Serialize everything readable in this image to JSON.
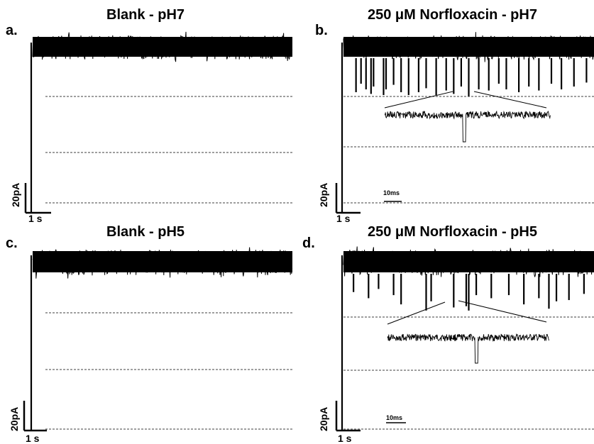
{
  "chart_data": [
    {
      "type": "line",
      "panel_label": "a.",
      "title": "Blank - pH7",
      "scale_bar": {
        "current": "20pA",
        "time": "1 s"
      },
      "baseline_level": "open-channel current with noise only",
      "blockade_events": [],
      "inset": null
    },
    {
      "type": "line",
      "panel_label": "b.",
      "title": "250 μM Norfloxacin - pH7",
      "scale_bar": {
        "current": "20pA",
        "time": "1 s"
      },
      "blockade_events": [
        {
          "t": 0.05,
          "depth": 0.55
        },
        {
          "t": 0.07,
          "depth": 0.4
        },
        {
          "t": 0.09,
          "depth": 0.5
        },
        {
          "t": 0.11,
          "depth": 0.58
        },
        {
          "t": 0.12,
          "depth": 0.45
        },
        {
          "t": 0.16,
          "depth": 0.6
        },
        {
          "t": 0.17,
          "depth": 0.5
        },
        {
          "t": 0.2,
          "depth": 0.42
        },
        {
          "t": 0.23,
          "depth": 0.55
        },
        {
          "t": 0.26,
          "depth": 0.6
        },
        {
          "t": 0.3,
          "depth": 0.55
        },
        {
          "t": 0.33,
          "depth": 0.48
        },
        {
          "t": 0.37,
          "depth": 0.6
        },
        {
          "t": 0.41,
          "depth": 0.52
        },
        {
          "t": 0.44,
          "depth": 0.58
        },
        {
          "t": 0.47,
          "depth": 0.45
        },
        {
          "t": 0.5,
          "depth": 0.62
        },
        {
          "t": 0.54,
          "depth": 0.5
        },
        {
          "t": 0.58,
          "depth": 0.52
        },
        {
          "t": 0.62,
          "depth": 0.4
        },
        {
          "t": 0.65,
          "depth": 0.5
        },
        {
          "t": 0.7,
          "depth": 0.55
        },
        {
          "t": 0.74,
          "depth": 0.45
        },
        {
          "t": 0.78,
          "depth": 0.52
        },
        {
          "t": 0.83,
          "depth": 0.4
        },
        {
          "t": 0.87,
          "depth": 0.5
        },
        {
          "t": 0.92,
          "depth": 0.45
        },
        {
          "t": 0.97,
          "depth": 0.38
        }
      ],
      "inset": {
        "scale_bar": "10ms",
        "event_at": 0.48
      }
    },
    {
      "type": "line",
      "panel_label": "c.",
      "title": "Blank - pH5",
      "scale_bar": {
        "current": "20pA",
        "time": "1 s"
      },
      "blockade_events": [],
      "inset": null
    },
    {
      "type": "line",
      "panel_label": "d.",
      "title": "250 μM Norfloxacin - pH5",
      "scale_bar": {
        "current": "20pA",
        "time": "1 s"
      },
      "blockade_events": [
        {
          "t": 0.04,
          "depth": 0.25
        },
        {
          "t": 0.1,
          "depth": 0.35
        },
        {
          "t": 0.14,
          "depth": 0.2
        },
        {
          "t": 0.2,
          "depth": 0.3
        },
        {
          "t": 0.23,
          "depth": 0.45
        },
        {
          "t": 0.33,
          "depth": 0.55
        },
        {
          "t": 0.35,
          "depth": 0.4
        },
        {
          "t": 0.44,
          "depth": 0.5
        },
        {
          "t": 0.49,
          "depth": 0.48
        },
        {
          "t": 0.5,
          "depth": 0.55
        },
        {
          "t": 0.53,
          "depth": 0.3
        },
        {
          "t": 0.59,
          "depth": 0.35
        },
        {
          "t": 0.66,
          "depth": 0.3
        },
        {
          "t": 0.72,
          "depth": 0.45
        },
        {
          "t": 0.78,
          "depth": 0.35
        },
        {
          "t": 0.82,
          "depth": 0.52
        },
        {
          "t": 0.85,
          "depth": 0.4
        },
        {
          "t": 0.9,
          "depth": 0.38
        },
        {
          "t": 0.96,
          "depth": 0.28
        }
      ],
      "inset": {
        "scale_bar": "10ms",
        "event_at": 0.55
      }
    }
  ]
}
